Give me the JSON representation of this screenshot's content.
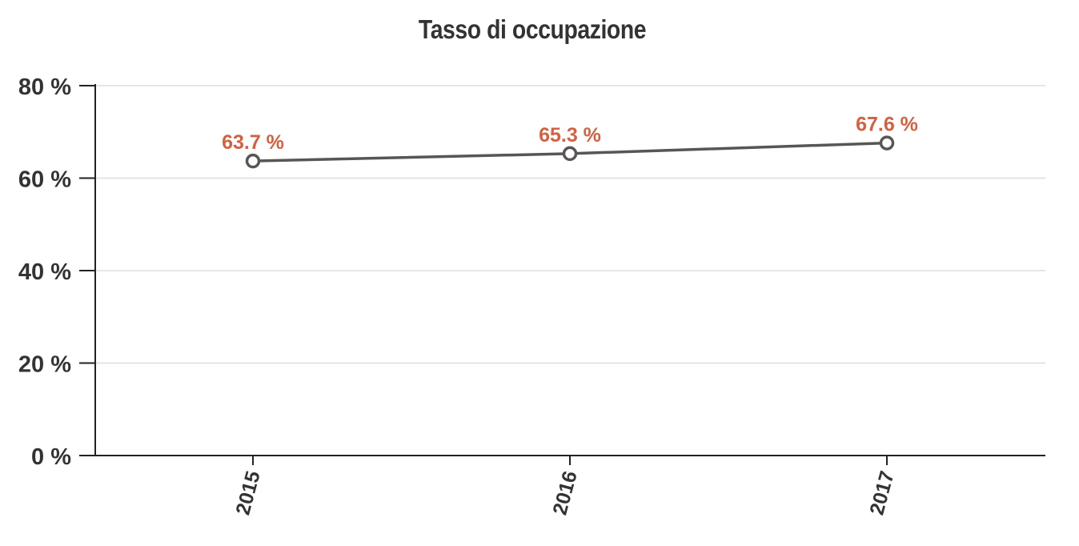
{
  "chart_data": {
    "type": "line",
    "title": "Tasso di occupazione",
    "xlabel": "",
    "ylabel": "",
    "categories": [
      "2015",
      "2016",
      "2017"
    ],
    "series": [
      {
        "values": [
          63.7,
          65.3,
          67.6
        ],
        "data_labels": [
          "63.7 %",
          "65.3 %",
          "67.6 %"
        ]
      }
    ],
    "ylim": [
      0,
      80
    ],
    "y_ticks": [
      0,
      20,
      40,
      60,
      80
    ],
    "y_tick_labels": [
      "0 %",
      "20 %",
      "40 %",
      "60 %",
      "80 %"
    ],
    "x_tick_rotation": "vertical",
    "grid": "horizontal",
    "legend": "none",
    "colors": {
      "line": "#595555",
      "marker_fill": "#ffffff",
      "data_label": "#d4603f",
      "grid": "#dddddd",
      "axis": "#222222",
      "text": "#333333"
    }
  }
}
